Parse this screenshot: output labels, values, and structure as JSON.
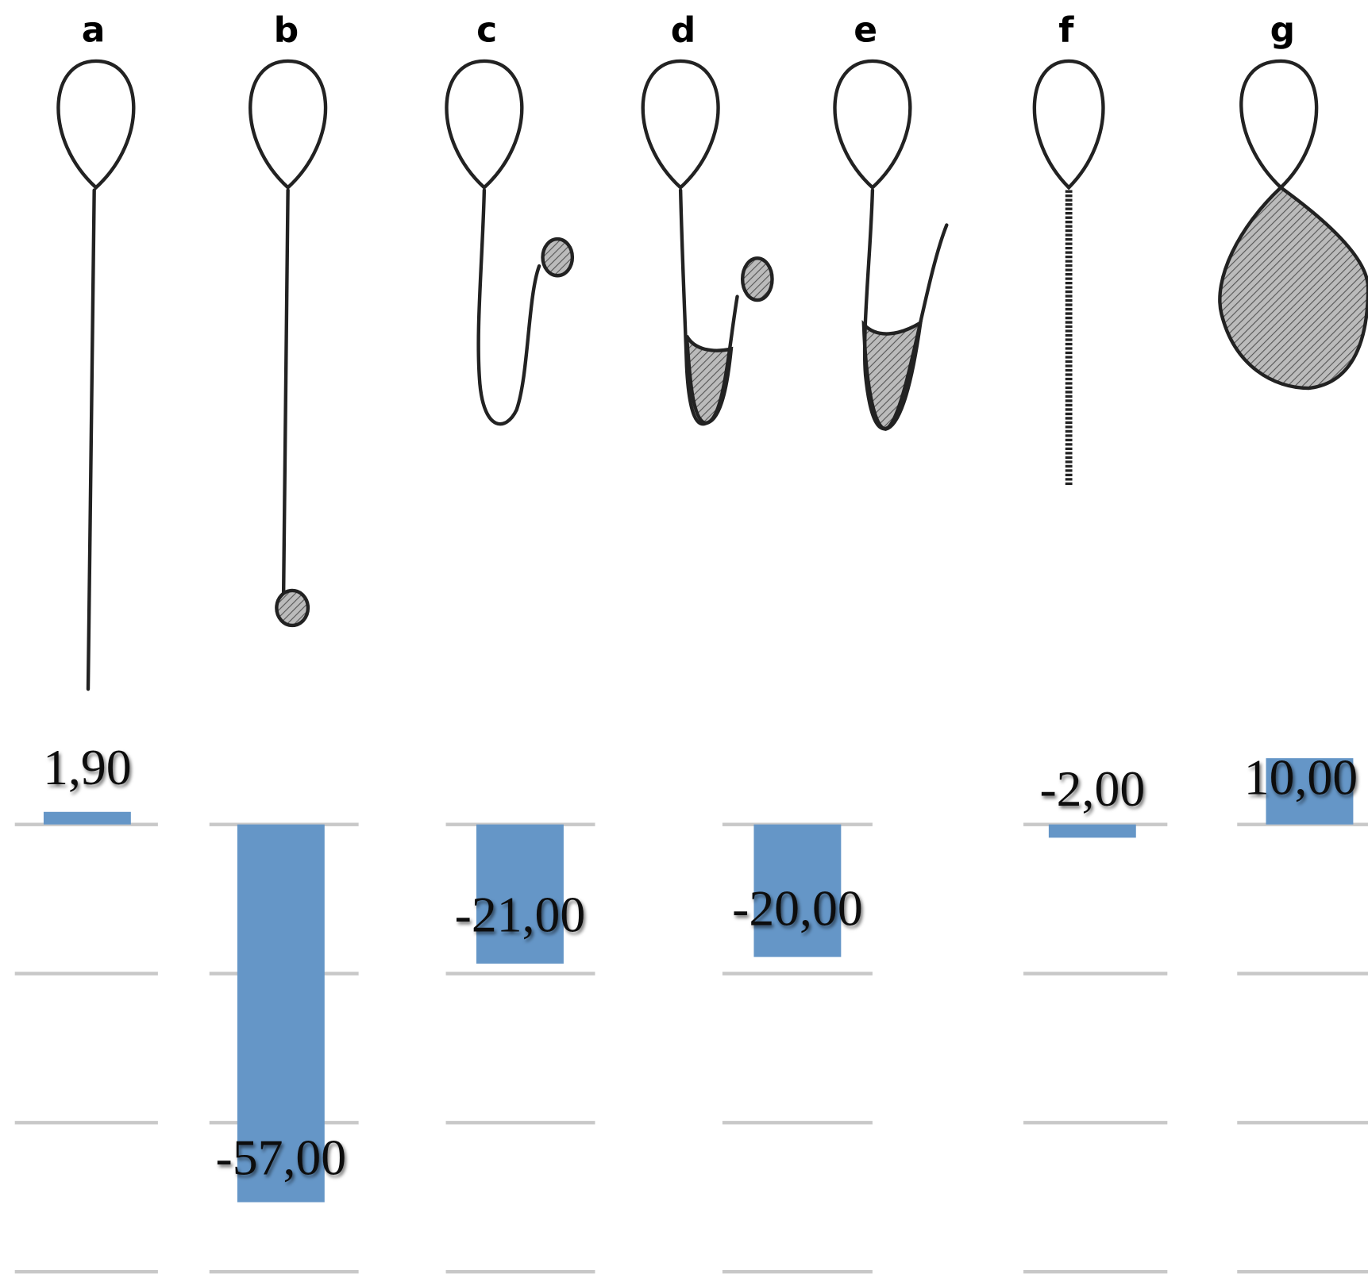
{
  "chart_data": {
    "type": "bar",
    "categories": [
      "a",
      "b",
      "c",
      "d",
      "e",
      "f",
      "g"
    ],
    "values": [
      1.9,
      -57,
      -21,
      -20,
      null,
      -2,
      10
    ],
    "value_labels": [
      "1,90",
      "-57,00",
      "-21,00",
      "-20,00",
      null,
      "-2,00",
      "10,00"
    ],
    "color": "#6596c7",
    "ylim": [
      -67.5,
      12
    ],
    "yticks": [
      0,
      -22.5,
      -45,
      -67.5
    ],
    "grid": true
  }
}
